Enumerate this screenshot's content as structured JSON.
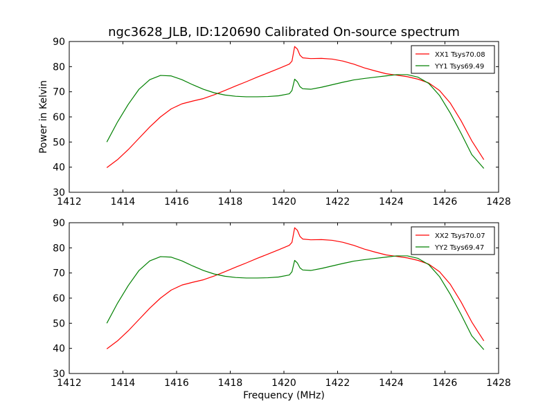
{
  "chart_data": {
    "title": "ngc3628_JLB, ID:120690 Calibrated On-source spectrum",
    "ylabel": "Power in Kelvin",
    "xlabel": "Frequency (MHz)",
    "panels": [
      {
        "type": "line",
        "xlim": [
          1412,
          1428
        ],
        "ylim": [
          30,
          90
        ],
        "xticks": [
          1412,
          1414,
          1416,
          1418,
          1420,
          1422,
          1424,
          1426,
          1428
        ],
        "yticks": [
          30,
          40,
          50,
          60,
          70,
          80,
          90
        ],
        "legend": "top-right",
        "series": [
          {
            "name": "XX1 Tsys70.08",
            "color": "#ff0000",
            "points": [
              [
                1413.4,
                39.8
              ],
              [
                1413.8,
                43.0
              ],
              [
                1414.2,
                47.0
              ],
              [
                1414.6,
                51.5
              ],
              [
                1415.0,
                56.0
              ],
              [
                1415.4,
                60.0
              ],
              [
                1415.8,
                63.2
              ],
              [
                1416.2,
                65.2
              ],
              [
                1416.6,
                66.3
              ],
              [
                1417.0,
                67.3
              ],
              [
                1417.4,
                68.8
              ],
              [
                1417.8,
                70.5
              ],
              [
                1418.2,
                72.3
              ],
              [
                1418.6,
                74.0
              ],
              [
                1419.0,
                75.8
              ],
              [
                1419.4,
                77.5
              ],
              [
                1419.8,
                79.2
              ],
              [
                1420.2,
                81.0
              ],
              [
                1420.3,
                82.2
              ],
              [
                1420.4,
                88.0
              ],
              [
                1420.5,
                87.0
              ],
              [
                1420.6,
                84.5
              ],
              [
                1420.7,
                83.5
              ],
              [
                1421.0,
                83.2
              ],
              [
                1421.4,
                83.3
              ],
              [
                1421.8,
                83.0
              ],
              [
                1422.2,
                82.2
              ],
              [
                1422.6,
                81.0
              ],
              [
                1423.0,
                79.5
              ],
              [
                1423.4,
                78.3
              ],
              [
                1423.8,
                77.2
              ],
              [
                1424.2,
                76.6
              ],
              [
                1424.6,
                76.0
              ],
              [
                1425.0,
                75.0
              ],
              [
                1425.4,
                73.5
              ],
              [
                1425.8,
                70.5
              ],
              [
                1426.2,
                65.5
              ],
              [
                1426.6,
                58.5
              ],
              [
                1427.0,
                50.5
              ],
              [
                1427.45,
                43.0
              ]
            ]
          },
          {
            "name": "YY1 Tsys69.49",
            "color": "#008000",
            "points": [
              [
                1413.4,
                50.0
              ],
              [
                1413.8,
                58.0
              ],
              [
                1414.2,
                65.0
              ],
              [
                1414.6,
                71.0
              ],
              [
                1415.0,
                74.8
              ],
              [
                1415.4,
                76.5
              ],
              [
                1415.8,
                76.3
              ],
              [
                1416.2,
                74.8
              ],
              [
                1416.6,
                72.8
              ],
              [
                1417.0,
                71.0
              ],
              [
                1417.4,
                69.6
              ],
              [
                1417.8,
                68.7
              ],
              [
                1418.2,
                68.2
              ],
              [
                1418.6,
                68.0
              ],
              [
                1419.0,
                68.0
              ],
              [
                1419.4,
                68.1
              ],
              [
                1419.8,
                68.4
              ],
              [
                1420.2,
                69.2
              ],
              [
                1420.3,
                70.5
              ],
              [
                1420.4,
                75.0
              ],
              [
                1420.5,
                74.0
              ],
              [
                1420.6,
                72.0
              ],
              [
                1420.7,
                71.2
              ],
              [
                1421.0,
                71.0
              ],
              [
                1421.4,
                71.8
              ],
              [
                1421.8,
                72.8
              ],
              [
                1422.2,
                73.8
              ],
              [
                1422.6,
                74.7
              ],
              [
                1423.0,
                75.3
              ],
              [
                1423.4,
                75.8
              ],
              [
                1423.8,
                76.3
              ],
              [
                1424.2,
                76.8
              ],
              [
                1424.6,
                76.8
              ],
              [
                1425.0,
                75.8
              ],
              [
                1425.4,
                73.3
              ],
              [
                1425.8,
                68.5
              ],
              [
                1426.2,
                61.5
              ],
              [
                1426.6,
                53.5
              ],
              [
                1427.0,
                45.0
              ],
              [
                1427.45,
                39.5
              ]
            ]
          }
        ]
      },
      {
        "type": "line",
        "xlim": [
          1412,
          1428
        ],
        "ylim": [
          30,
          90
        ],
        "xticks": [
          1412,
          1414,
          1416,
          1418,
          1420,
          1422,
          1424,
          1426,
          1428
        ],
        "yticks": [
          30,
          40,
          50,
          60,
          70,
          80,
          90
        ],
        "legend": "top-right",
        "series": [
          {
            "name": "XX2 Tsys70.07",
            "color": "#ff0000",
            "points": [
              [
                1413.4,
                39.8
              ],
              [
                1413.8,
                43.0
              ],
              [
                1414.2,
                47.0
              ],
              [
                1414.6,
                51.5
              ],
              [
                1415.0,
                56.0
              ],
              [
                1415.4,
                60.0
              ],
              [
                1415.8,
                63.2
              ],
              [
                1416.2,
                65.2
              ],
              [
                1416.6,
                66.3
              ],
              [
                1417.0,
                67.3
              ],
              [
                1417.4,
                68.8
              ],
              [
                1417.8,
                70.5
              ],
              [
                1418.2,
                72.3
              ],
              [
                1418.6,
                74.0
              ],
              [
                1419.0,
                75.8
              ],
              [
                1419.4,
                77.5
              ],
              [
                1419.8,
                79.2
              ],
              [
                1420.2,
                81.0
              ],
              [
                1420.3,
                82.2
              ],
              [
                1420.4,
                88.0
              ],
              [
                1420.5,
                87.0
              ],
              [
                1420.6,
                84.5
              ],
              [
                1420.7,
                83.5
              ],
              [
                1421.0,
                83.2
              ],
              [
                1421.4,
                83.3
              ],
              [
                1421.8,
                83.0
              ],
              [
                1422.2,
                82.2
              ],
              [
                1422.6,
                81.0
              ],
              [
                1423.0,
                79.5
              ],
              [
                1423.4,
                78.3
              ],
              [
                1423.8,
                77.2
              ],
              [
                1424.2,
                76.6
              ],
              [
                1424.6,
                76.0
              ],
              [
                1425.0,
                75.0
              ],
              [
                1425.4,
                73.5
              ],
              [
                1425.8,
                70.5
              ],
              [
                1426.2,
                65.5
              ],
              [
                1426.6,
                58.5
              ],
              [
                1427.0,
                50.5
              ],
              [
                1427.45,
                43.0
              ]
            ]
          },
          {
            "name": "YY2 Tsys69.47",
            "color": "#008000",
            "points": [
              [
                1413.4,
                50.0
              ],
              [
                1413.8,
                58.0
              ],
              [
                1414.2,
                65.0
              ],
              [
                1414.6,
                71.0
              ],
              [
                1415.0,
                74.8
              ],
              [
                1415.4,
                76.5
              ],
              [
                1415.8,
                76.3
              ],
              [
                1416.2,
                74.8
              ],
              [
                1416.6,
                72.8
              ],
              [
                1417.0,
                71.0
              ],
              [
                1417.4,
                69.6
              ],
              [
                1417.8,
                68.7
              ],
              [
                1418.2,
                68.2
              ],
              [
                1418.6,
                68.0
              ],
              [
                1419.0,
                68.0
              ],
              [
                1419.4,
                68.1
              ],
              [
                1419.8,
                68.4
              ],
              [
                1420.2,
                69.2
              ],
              [
                1420.3,
                70.5
              ],
              [
                1420.4,
                75.0
              ],
              [
                1420.5,
                74.0
              ],
              [
                1420.6,
                72.0
              ],
              [
                1420.7,
                71.2
              ],
              [
                1421.0,
                71.0
              ],
              [
                1421.4,
                71.8
              ],
              [
                1421.8,
                72.8
              ],
              [
                1422.2,
                73.8
              ],
              [
                1422.6,
                74.7
              ],
              [
                1423.0,
                75.3
              ],
              [
                1423.4,
                75.8
              ],
              [
                1423.8,
                76.3
              ],
              [
                1424.2,
                76.8
              ],
              [
                1424.6,
                76.8
              ],
              [
                1425.0,
                75.8
              ],
              [
                1425.4,
                73.3
              ],
              [
                1425.8,
                68.5
              ],
              [
                1426.2,
                61.5
              ],
              [
                1426.6,
                53.5
              ],
              [
                1427.0,
                45.0
              ],
              [
                1427.45,
                39.5
              ]
            ]
          }
        ]
      }
    ]
  }
}
